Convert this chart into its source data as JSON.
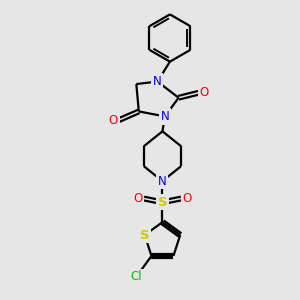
{
  "background_color": "#e6e6e6",
  "bond_color": "#000000",
  "bond_lw": 1.6,
  "atom_colors": {
    "N": "#0000ee",
    "O": "#ff0000",
    "S": "#cccc00",
    "Cl": "#00bb00"
  },
  "figsize": [
    3.0,
    3.0
  ],
  "dpi": 100,
  "xlim": [
    0,
    10
  ],
  "ylim": [
    0,
    12
  ]
}
